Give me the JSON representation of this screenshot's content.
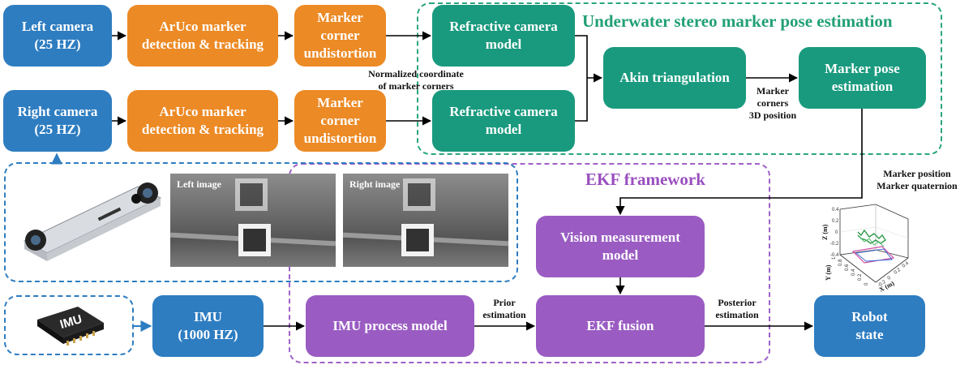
{
  "groups": {
    "underwater_title": "Underwater stereo marker pose estimation",
    "ekf_title": "EKF framework"
  },
  "boxes": {
    "left_camera": "Left camera\n(25 HZ)",
    "right_camera": "Right camera\n(25 HZ)",
    "aruco_left": "ArUco marker\ndetection & tracking",
    "aruco_right": "ArUco marker\ndetection & tracking",
    "undistort_left": "Marker\ncorner\nundistortion",
    "undistort_right": "Marker\ncorner\nundistortion",
    "refractive_top": "Refractive camera\nmodel",
    "refractive_bottom": "Refractive camera\nmodel",
    "triangulation": "Akin triangulation",
    "marker_pose": "Marker pose\nestimation",
    "vision_model": "Vision measurement\nmodel",
    "imu": "IMU\n(1000 HZ)",
    "imu_process": "IMU process model",
    "ekf_fusion": "EKF fusion",
    "robot_state": "Robot\nstate"
  },
  "labels": {
    "normalized": "Normalized coordinate\nof marker corners",
    "corners3d": "Marker\ncorners\n3D position",
    "marker_out": "Marker position\nMarker quaternion",
    "prior": "Prior\nestimation",
    "posterior": "Posterior\nestimation"
  },
  "images": {
    "left_image": "Left image",
    "right_image": "Right image",
    "imu_chip": "IMU"
  },
  "plot": {
    "zlabel": "Z (m)",
    "xlabel": "X (m)",
    "ylabel": "Y (m)",
    "z_ticks": [
      "0.4",
      "0.2",
      "0",
      "-0.2",
      "-0.4"
    ],
    "x_ticks": [
      "-0.2",
      "0",
      "0.2",
      "0.4"
    ],
    "y_ticks": [
      "1",
      "0.8",
      "0.6",
      "0.4",
      "0.2",
      "0"
    ]
  },
  "colors": {
    "blue": "#2e7dc1",
    "orange": "#ec8a25",
    "green": "#199a7e",
    "purple": "#9a5cc2"
  }
}
